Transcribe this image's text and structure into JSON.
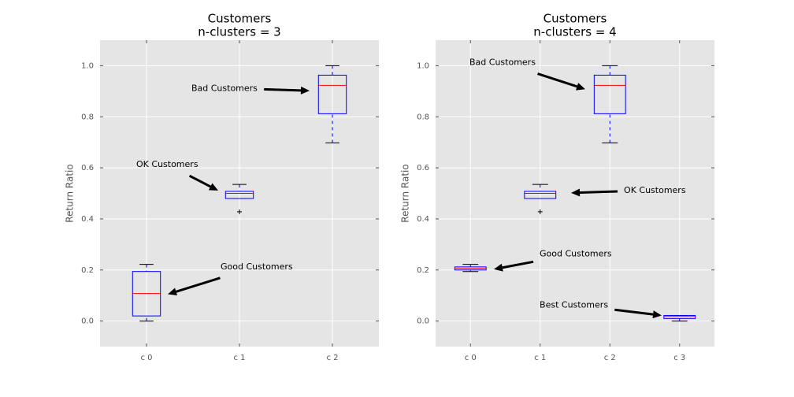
{
  "chart_data": [
    {
      "type": "box",
      "title": "Customers",
      "subtitle": "n-clusters = 3",
      "ylabel": "Return Ratio",
      "categories": [
        "c 0",
        "c 1",
        "c 2"
      ],
      "boxes": [
        {
          "whislo": 0.0,
          "q1": 0.02,
          "med": 0.108,
          "q3": 0.194,
          "whishi": 0.222,
          "fliers": []
        },
        {
          "whislo": 0.48,
          "q1": 0.48,
          "med": 0.5,
          "q3": 0.508,
          "whishi": 0.535,
          "fliers": [
            0.428
          ]
        },
        {
          "whislo": 0.698,
          "q1": 0.812,
          "med": 0.923,
          "q3": 0.963,
          "whishi": 1.0,
          "fliers": []
        }
      ],
      "ylim": [
        -0.1,
        1.1
      ],
      "yticks": [
        {
          "value": 0,
          "label": "0.0"
        },
        0.2,
        0.4,
        0.6,
        0.8,
        {
          "value": 1,
          "label": "1.0"
        }
      ],
      "grid": true,
      "box_color": "#0000ff",
      "median_color": "#ff0000",
      "annotations": [
        {
          "text": "Bad Customers",
          "xy": [
            2.754,
            0.902
          ],
          "xytext": [
            1.483,
            0.911
          ]
        },
        {
          "text": "OK Customers",
          "xy": [
            1.771,
            0.511
          ],
          "xytext": [
            0.89,
            0.612
          ]
        },
        {
          "text": "Good Customers",
          "xy": [
            1.229,
            0.105
          ],
          "xytext": [
            1.797,
            0.212
          ]
        }
      ]
    },
    {
      "type": "box",
      "title": "Customers",
      "subtitle": "n-clusters = 4",
      "ylabel": "Return Ratio",
      "categories": [
        "c 0",
        "c 1",
        "c 2",
        "c 3"
      ],
      "boxes": [
        {
          "whislo": 0.194,
          "q1": 0.2,
          "med": 0.206,
          "q3": 0.212,
          "whishi": 0.222,
          "fliers": []
        },
        {
          "whislo": 0.48,
          "q1": 0.48,
          "med": 0.5,
          "q3": 0.508,
          "whishi": 0.535,
          "fliers": [
            0.428
          ]
        },
        {
          "whislo": 0.698,
          "q1": 0.812,
          "med": 0.923,
          "q3": 0.963,
          "whishi": 1.0,
          "fliers": []
        },
        {
          "whislo": 0.0,
          "q1": 0.01,
          "med": 0.018,
          "q3": 0.022,
          "whishi": 0.022,
          "fliers": []
        }
      ],
      "ylim": [
        -0.1,
        1.1
      ],
      "yticks": [
        {
          "value": 0,
          "label": "0.0"
        },
        0.2,
        0.4,
        0.6,
        0.8,
        {
          "value": 1,
          "label": "1.0"
        }
      ],
      "grid": true,
      "box_color": "#0000ff",
      "median_color": "#ff0000",
      "annotations": [
        {
          "text": "Bad Customers",
          "xy": [
            2.647,
            0.908
          ],
          "xytext": [
            0.986,
            1.012
          ]
        },
        {
          "text": "OK Customers",
          "xy": [
            2.444,
            0.502
          ],
          "xytext": [
            3.201,
            0.511
          ]
        },
        {
          "text": "Good Customers",
          "xy": [
            1.336,
            0.203
          ],
          "xytext": [
            1.992,
            0.262
          ]
        },
        {
          "text": "Best Customers",
          "xy": [
            3.743,
            0.022
          ],
          "xytext": [
            1.992,
            0.062
          ]
        }
      ]
    }
  ]
}
